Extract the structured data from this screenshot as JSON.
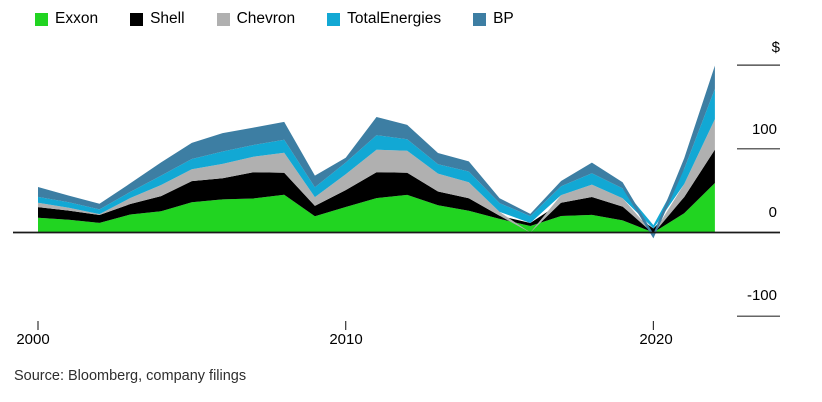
{
  "legend": {
    "items": [
      {
        "label": "Exxon",
        "color": "#21d421"
      },
      {
        "label": "Shell",
        "color": "#000000"
      },
      {
        "label": "Chevron",
        "color": "#b0b0b0"
      },
      {
        "label": "TotalEnergies",
        "color": "#12a8d4"
      },
      {
        "label": "BP",
        "color": "#3d7ea3"
      }
    ]
  },
  "y_axis": {
    "tick_labels": [
      "$",
      "100",
      "0",
      "-100"
    ],
    "tick_values": [
      200,
      100,
      0,
      -100
    ]
  },
  "x_axis": {
    "tick_labels": [
      "2000",
      "2010",
      "2020"
    ],
    "tick_years": [
      2000,
      2010,
      2020
    ]
  },
  "source_note": "Source: Bloomberg, company filings",
  "chart_data": {
    "type": "area",
    "stacked": true,
    "title": "",
    "ylabel": "$",
    "unit": "$ billions",
    "ylim": [
      -100,
      200
    ],
    "grid": false,
    "legend_position": "top",
    "x": [
      2000,
      2001,
      2002,
      2003,
      2004,
      2005,
      2006,
      2007,
      2008,
      2009,
      2010,
      2011,
      2012,
      2013,
      2014,
      2015,
      2016,
      2017,
      2018,
      2019,
      2020,
      2021,
      2022
    ],
    "series": [
      {
        "name": "Exxon",
        "color": "#21d421",
        "values": [
          17.7,
          15.3,
          11.5,
          21.5,
          25.3,
          36.1,
          39.5,
          40.6,
          45.2,
          19.3,
          30.5,
          41.1,
          44.9,
          32.6,
          26.0,
          16.2,
          7.8,
          19.7,
          21.0,
          14.4,
          -1.0,
          23.0,
          59.1
        ]
      },
      {
        "name": "Shell",
        "color": "#000000",
        "values": [
          12.7,
          10.9,
          9.4,
          12.5,
          18.2,
          25.3,
          25.4,
          31.3,
          26.3,
          12.5,
          20.1,
          30.9,
          26.6,
          16.4,
          14.9,
          3.8,
          3.5,
          15.8,
          21.4,
          16.5,
          4.8,
          19.3,
          39.9
        ]
      },
      {
        "name": "Chevron",
        "color": "#b0b0b0",
        "values": [
          5.2,
          3.3,
          1.1,
          7.2,
          13.3,
          14.1,
          17.1,
          18.7,
          23.9,
          10.5,
          19.0,
          26.9,
          26.2,
          21.4,
          19.2,
          4.6,
          -0.1,
          9.2,
          14.8,
          10.0,
          -0.4,
          15.6,
          36.5
        ]
      },
      {
        "name": "TotalEnergies",
        "color": "#12a8d4",
        "values": [
          6.9,
          6.6,
          5.6,
          7.3,
          11.2,
          12.3,
          14.8,
          13.9,
          15.5,
          11.7,
          14.0,
          17.4,
          13.7,
          11.2,
          12.8,
          10.5,
          8.3,
          10.6,
          13.6,
          11.8,
          4.1,
          18.1,
          36.2
        ]
      },
      {
        "name": "BP",
        "color": "#3d7ea3",
        "values": [
          11.9,
          8.0,
          6.8,
          10.3,
          15.7,
          19.3,
          22.0,
          20.8,
          21.2,
          14.0,
          5.6,
          21.7,
          17.1,
          13.4,
          12.1,
          5.9,
          2.6,
          6.2,
          12.7,
          7.4,
          -5.7,
          12.8,
          27.7
        ]
      }
    ]
  }
}
